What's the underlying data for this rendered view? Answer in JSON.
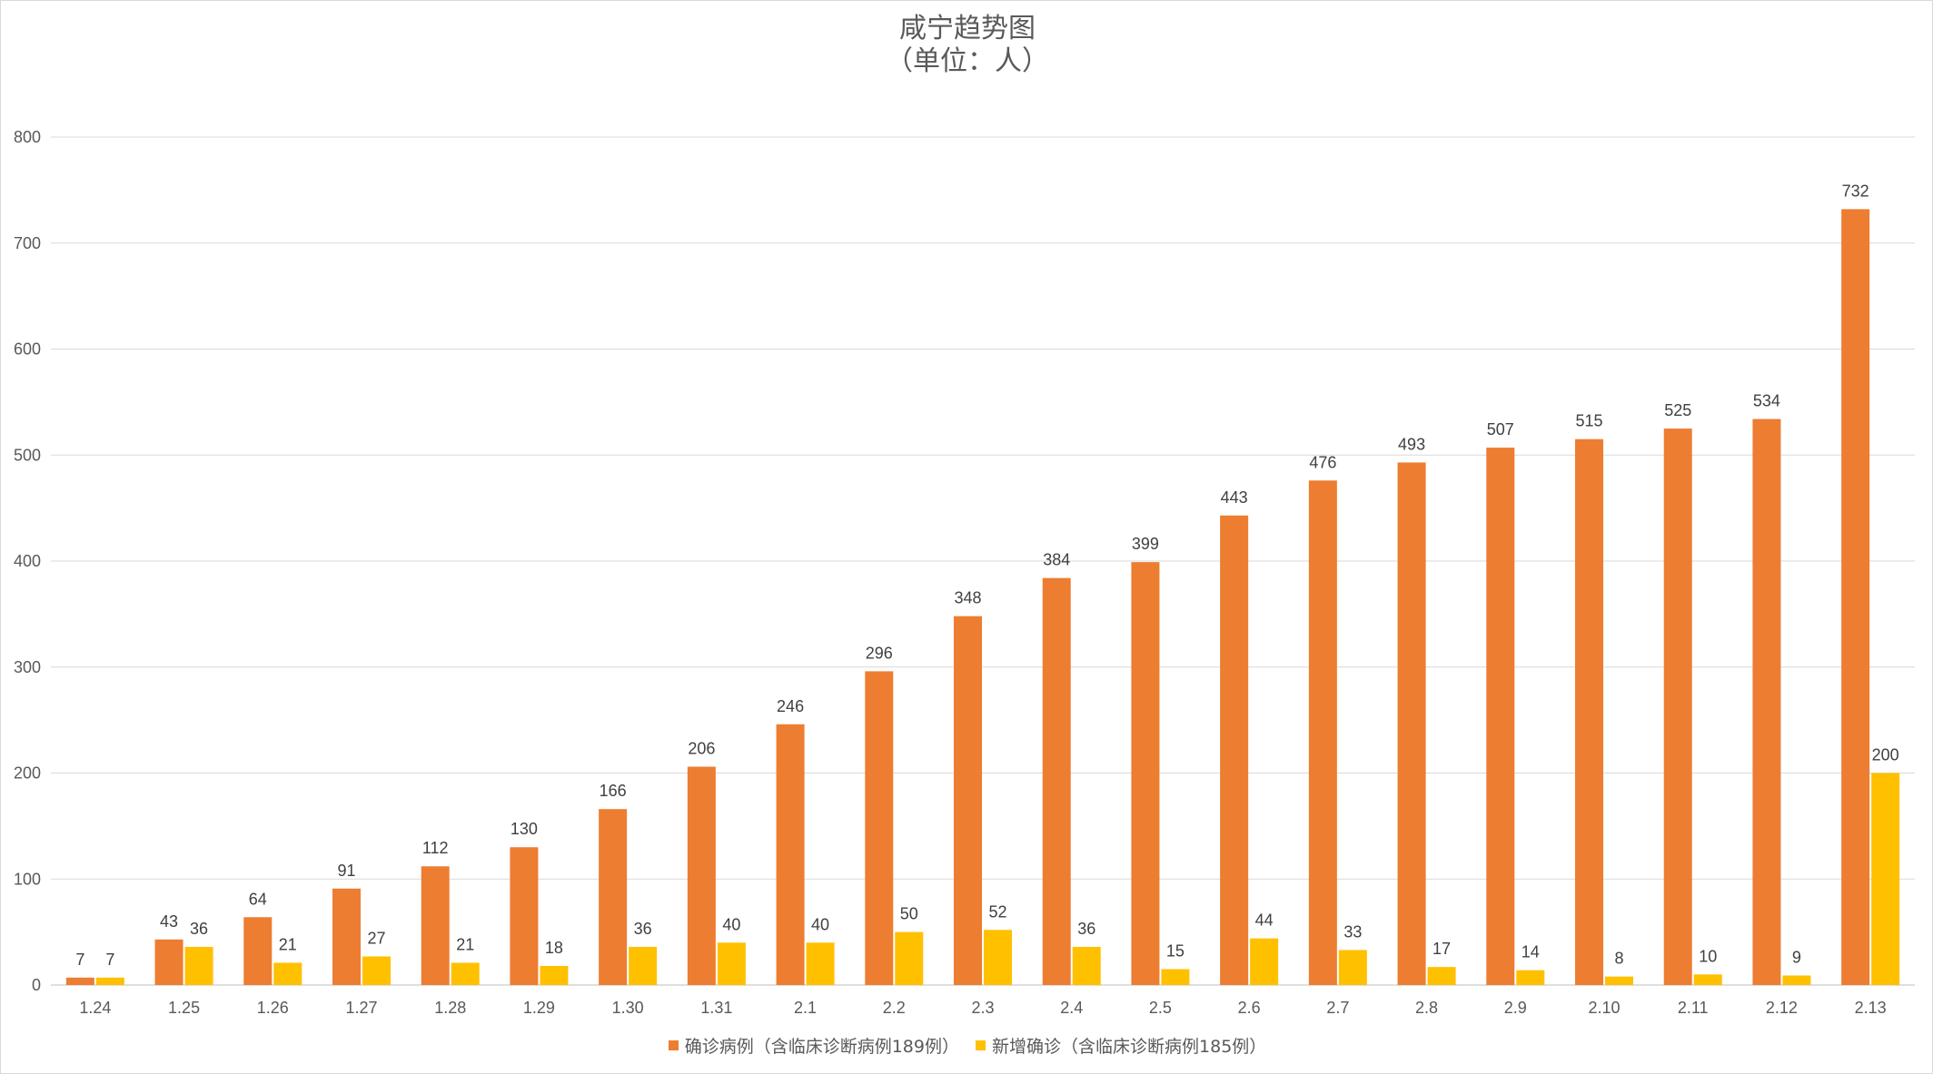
{
  "chart_data": {
    "type": "bar",
    "title": "咸宁趋势图",
    "subtitle": "（单位：人）",
    "categories": [
      "1.24",
      "1.25",
      "1.26",
      "1.27",
      "1.28",
      "1.29",
      "1.30",
      "1.31",
      "2.1",
      "2.2",
      "2.3",
      "2.4",
      "2.5",
      "2.6",
      "2.7",
      "2.8",
      "2.9",
      "2.10",
      "2.11",
      "2.12",
      "2.13"
    ],
    "series": [
      {
        "name": "确诊病例（含临床诊断病例189例）",
        "color": "#ED7D31",
        "values": [
          7,
          43,
          64,
          91,
          112,
          130,
          166,
          206,
          246,
          296,
          348,
          384,
          399,
          443,
          476,
          493,
          507,
          515,
          525,
          534,
          732
        ]
      },
      {
        "name": "新增确诊（含临床诊断病例185例）",
        "color": "#FFC000",
        "values": [
          7,
          36,
          21,
          27,
          21,
          18,
          36,
          40,
          40,
          50,
          52,
          36,
          15,
          44,
          33,
          17,
          14,
          8,
          10,
          9,
          200
        ]
      }
    ],
    "ylim": [
      0,
      800
    ],
    "yticks": [
      0,
      100,
      200,
      300,
      400,
      500,
      600,
      700,
      800
    ],
    "grid": true,
    "legend_position": "bottom"
  }
}
